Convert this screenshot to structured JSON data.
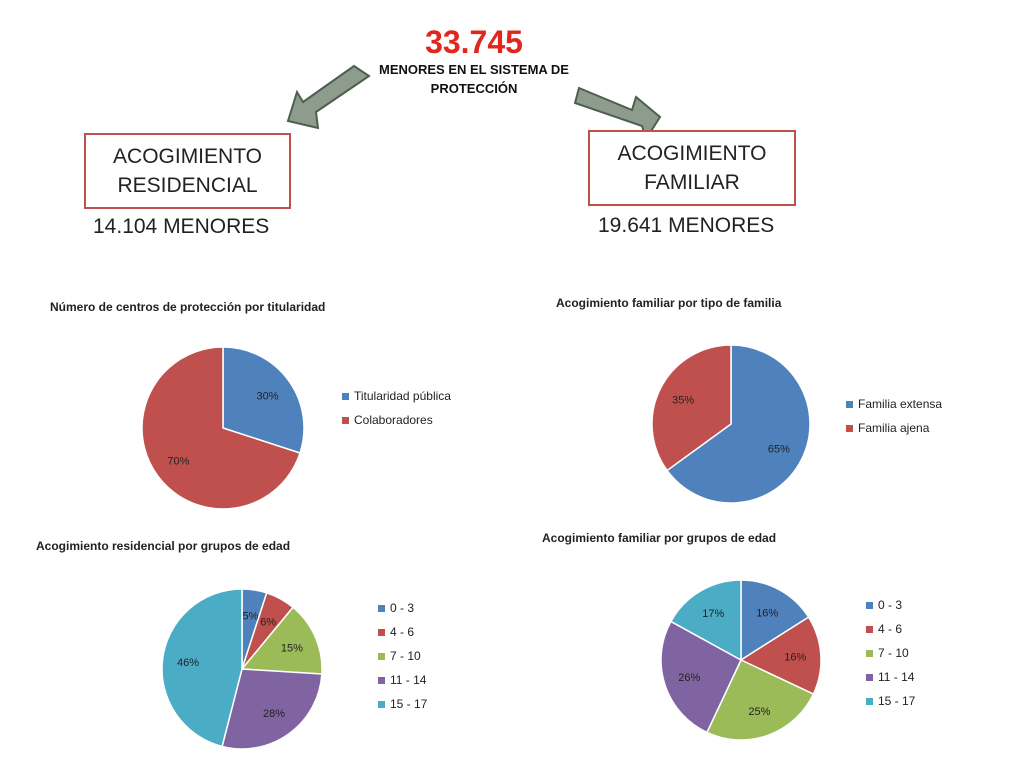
{
  "header": {
    "total": "33.745",
    "subtitle": "MENORES EN EL SISTEMA DE PROTECCIÓN"
  },
  "branches": {
    "residencial": {
      "label": "ACOGIMIENTO RESIDENCIAL",
      "count": "14.104 MENORES"
    },
    "familiar": {
      "label": "ACOGIMIENTO FAMILIAR",
      "count": "19.641 MENORES"
    }
  },
  "colors": {
    "accent_red": "#e0261d",
    "box_border": "#c0504d",
    "arrow_fill": "#8e9c8e",
    "arrow_stroke": "#4f5f4f"
  },
  "chart_data": [
    {
      "type": "pie",
      "title": "Número de centros de protección por titularidad",
      "categories": [
        "Titularidad pública",
        "Colaboradores"
      ],
      "values": [
        30,
        70
      ],
      "labels": [
        "30%",
        "70%"
      ],
      "colors": [
        "#4f81bd",
        "#c0504d"
      ],
      "legend_position": "right"
    },
    {
      "type": "pie",
      "title": "Acogimiento familiar por tipo de familia",
      "categories": [
        "Familia extensa",
        "Familia ajena"
      ],
      "values": [
        65,
        35
      ],
      "labels": [
        "65%",
        "35%"
      ],
      "colors": [
        "#4f81bd",
        "#c0504d"
      ],
      "legend_position": "right"
    },
    {
      "type": "pie",
      "title": "Acogimiento residencial por grupos de edad",
      "categories": [
        "0 - 3",
        "4 - 6",
        "7 - 10",
        "11 - 14",
        "15 - 17"
      ],
      "values": [
        5,
        6,
        15,
        28,
        46
      ],
      "labels": [
        "5%",
        "6%",
        "15%",
        "28%",
        "46%"
      ],
      "colors": [
        "#4f81bd",
        "#c0504d",
        "#9bbb59",
        "#8064a2",
        "#4bacc6"
      ],
      "legend_position": "right"
    },
    {
      "type": "pie",
      "title": "Acogimiento familiar por grupos de edad",
      "categories": [
        "0 - 3",
        "4 - 6",
        "7 - 10",
        "11 - 14",
        "15 - 17"
      ],
      "values": [
        16,
        16,
        25,
        26,
        17
      ],
      "labels": [
        "16%",
        "16%",
        "25%",
        "26%",
        "17%"
      ],
      "colors": [
        "#4f81bd",
        "#c0504d",
        "#9bbb59",
        "#8064a2",
        "#4bacc6"
      ],
      "legend_position": "right"
    }
  ]
}
